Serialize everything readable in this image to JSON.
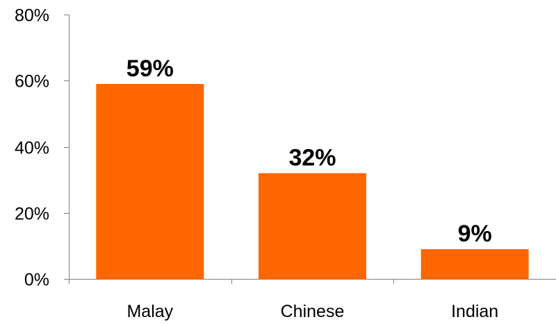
{
  "chart_data": {
    "type": "bar",
    "title": "",
    "xlabel": "",
    "ylabel": "",
    "categories": [
      "Malay",
      "Chinese",
      "Indian"
    ],
    "values": [
      59,
      32,
      9
    ],
    "data_labels": [
      "59%",
      "32%",
      "9%"
    ],
    "ylim": [
      0,
      80
    ],
    "y_ticks": [
      0,
      20,
      40,
      60,
      80
    ],
    "y_tick_labels": [
      "0%",
      "20%",
      "40%",
      "60%",
      "80%"
    ],
    "grid": false,
    "legend": "none",
    "bar_color": "#FF6600"
  }
}
